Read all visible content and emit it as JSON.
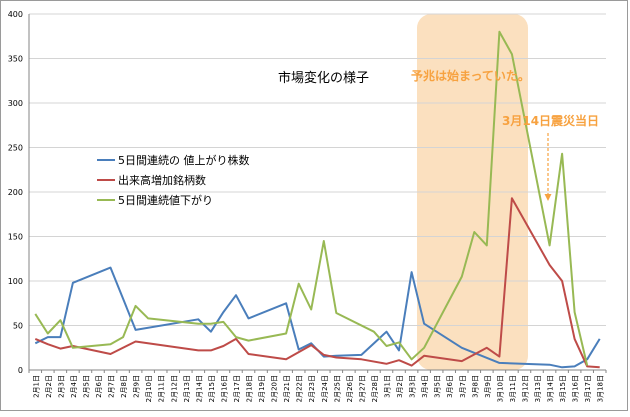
{
  "chart_data": {
    "type": "line",
    "title": "市場変化の様子",
    "ylim": [
      0,
      400
    ],
    "yticks": [
      0,
      50,
      100,
      150,
      200,
      250,
      300,
      350,
      400
    ],
    "categories": [
      "2月1日",
      "2月2日",
      "2月3日",
      "2月4日",
      "2月5日",
      "2月6日",
      "2月7日",
      "2月8日",
      "2月9日",
      "2月10日",
      "2月11日",
      "2月12日",
      "2月13日",
      "2月14日",
      "2月15日",
      "2月16日",
      "2月17日",
      "2月18日",
      "2月19日",
      "2月20日",
      "2月21日",
      "2月22日",
      "2月23日",
      "2月24日",
      "2月25日",
      "2月26日",
      "2月27日",
      "2月28日",
      "3月1日",
      "3月2日",
      "3月3日",
      "3月4日",
      "3月5日",
      "3月6日",
      "3月7日",
      "3月8日",
      "3月9日",
      "3月10日",
      "3月11日",
      "3月12日",
      "3月13日",
      "3月14日",
      "3月15日",
      "3月16日",
      "3月17日",
      "3月18日"
    ],
    "series": [
      {
        "name": "5日間連続の 値上がり株数",
        "color": "#4a7ebb",
        "values": [
          30,
          37,
          37,
          98,
          null,
          null,
          115,
          80,
          45,
          null,
          null,
          null,
          null,
          57,
          43,
          65,
          84,
          58,
          null,
          null,
          75,
          23,
          30,
          15,
          16,
          null,
          17,
          null,
          43,
          22,
          110,
          52,
          null,
          null,
          25,
          null,
          null,
          8,
          null,
          null,
          null,
          6,
          3,
          4,
          12,
          35
        ]
      },
      {
        "name": "出来高増加銘柄数",
        "color": "#be4b48",
        "values": [
          35,
          29,
          24,
          27,
          null,
          null,
          18,
          null,
          32,
          null,
          null,
          null,
          null,
          22,
          22,
          27,
          35,
          18,
          null,
          null,
          12,
          null,
          28,
          17,
          14,
          null,
          12,
          null,
          7,
          11,
          5,
          16,
          null,
          null,
          10,
          null,
          25,
          15,
          193,
          null,
          null,
          118,
          100,
          35,
          4,
          3
        ]
      },
      {
        "name": "5日間連続値下がり",
        "color": "#98b954",
        "values": [
          63,
          41,
          56,
          25,
          null,
          null,
          29,
          37,
          72,
          58,
          null,
          null,
          null,
          52,
          52,
          54,
          37,
          33,
          null,
          null,
          41,
          97,
          68,
          145,
          64,
          null,
          null,
          43,
          27,
          31,
          12,
          25,
          null,
          null,
          105,
          155,
          140,
          380,
          355,
          null,
          null,
          140,
          243,
          65,
          5,
          null
        ]
      }
    ],
    "annotations": {
      "title_label": "市場変化の様子",
      "foreshadow": "予兆は始まっていた。",
      "quake_day": "3月14日震災当日"
    },
    "colors": {
      "highlight": "#fbe0bf",
      "annotation": "#f7a240",
      "grid": "#d4d4d4",
      "axis": "#868686"
    }
  }
}
